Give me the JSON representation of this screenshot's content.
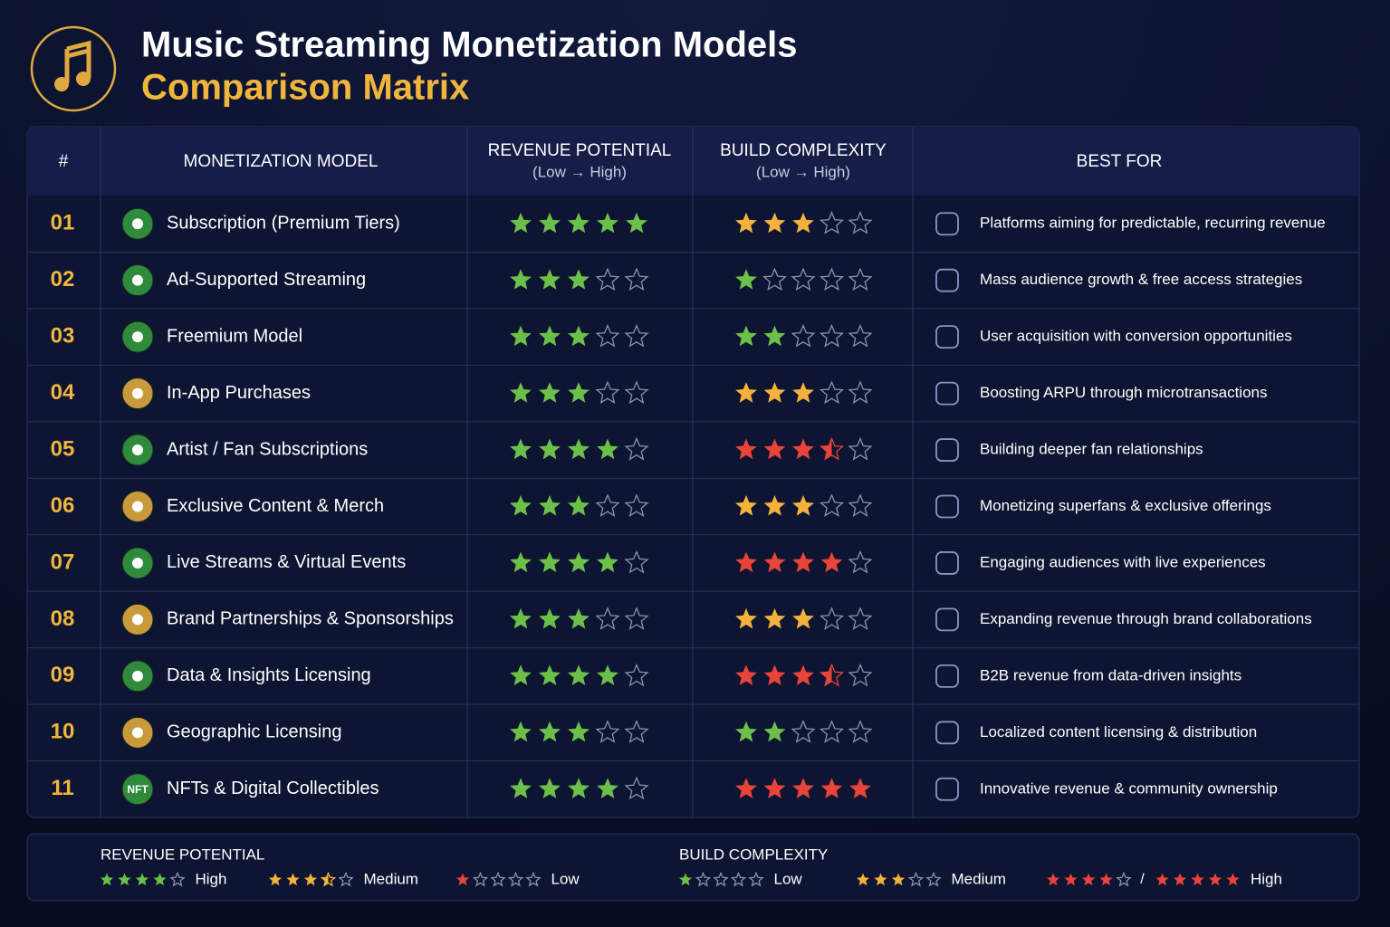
{
  "header": {
    "title": "Music Streaming Monetization Models",
    "subtitle": "Comparison Matrix"
  },
  "table": {
    "rating_max": 5,
    "revenue_color": "#6cc04a",
    "columns": [
      {
        "label": "#"
      },
      {
        "label": "MONETIZATION MODEL"
      },
      {
        "label": "REVENUE POTENTIAL",
        "sub": "(Low → High)"
      },
      {
        "label": "BUILD COMPLEXITY",
        "sub": "(Low → High)"
      },
      {
        "label": "BEST FOR"
      }
    ],
    "rows": [
      {
        "num": "01",
        "model": "Subscription (Premium Tiers)",
        "badge_color": "#2f8a3c",
        "revenue": 5,
        "complexity": 3,
        "complexity_color": "#f4b23c",
        "best_for": "Platforms aiming for predictable, recurring revenue"
      },
      {
        "num": "02",
        "model": "Ad-Supported Streaming",
        "badge_color": "#2f8a3c",
        "revenue": 3,
        "complexity": 1,
        "complexity_color": "#6cc04a",
        "best_for": "Mass audience growth & free access strategies"
      },
      {
        "num": "03",
        "model": "Freemium Model",
        "badge_color": "#2f8a3c",
        "revenue": 3,
        "complexity": 2,
        "complexity_color": "#6cc04a",
        "best_for": "User acquisition with conversion opportunities"
      },
      {
        "num": "04",
        "model": "In-App Purchases",
        "badge_color": "#c99a3a",
        "revenue": 3,
        "complexity": 3,
        "complexity_color": "#f4b23c",
        "best_for": "Boosting ARPU through microtransactions"
      },
      {
        "num": "05",
        "model": "Artist / Fan Subscriptions",
        "badge_color": "#2f8a3c",
        "revenue": 4,
        "complexity": 3.5,
        "complexity_color": "#e8443a",
        "best_for": "Building deeper fan relationships"
      },
      {
        "num": "06",
        "model": "Exclusive Content & Merch",
        "badge_color": "#c99a3a",
        "revenue": 3,
        "complexity": 3,
        "complexity_color": "#f4b23c",
        "best_for": "Monetizing superfans & exclusive offerings"
      },
      {
        "num": "07",
        "model": "Live Streams & Virtual Events",
        "badge_color": "#2f8a3c",
        "revenue": 4,
        "complexity": 4,
        "complexity_color": "#e8443a",
        "best_for": "Engaging audiences with live experiences"
      },
      {
        "num": "08",
        "model": "Brand Partnerships & Sponsorships",
        "badge_color": "#c99a3a",
        "revenue": 3,
        "complexity": 3,
        "complexity_color": "#f4b23c",
        "best_for": "Expanding revenue through brand collaborations"
      },
      {
        "num": "09",
        "model": "Data & Insights Licensing",
        "badge_color": "#2f8a3c",
        "revenue": 4,
        "complexity": 3.5,
        "complexity_color": "#e8443a",
        "best_for": "B2B revenue from data-driven insights"
      },
      {
        "num": "10",
        "model": "Geographic Licensing",
        "badge_color": "#c99a3a",
        "revenue": 3,
        "complexity": 2,
        "complexity_color": "#6cc04a",
        "best_for": "Localized content licensing & distribution"
      },
      {
        "num": "11",
        "model": "NFTs & Digital Collectibles",
        "badge_color": "#2f8a3c",
        "badge_text": "NFT",
        "revenue": 4,
        "complexity": 5,
        "complexity_color": "#e8443a",
        "best_for": "Innovative revenue & community ownership"
      }
    ]
  },
  "legend": {
    "groups": [
      {
        "title": "REVENUE POTENTIAL",
        "items": [
          {
            "ratings": [
              4
            ],
            "color": "#6cc04a",
            "label": "High"
          },
          {
            "ratings": [
              3.5
            ],
            "color": "#f4b23c",
            "label": "Medium"
          },
          {
            "ratings": [
              1
            ],
            "color": "#e8443a",
            "label": "Low"
          }
        ]
      },
      {
        "title": "BUILD COMPLEXITY",
        "items": [
          {
            "ratings": [
              1
            ],
            "color": "#6cc04a",
            "label": "Low"
          },
          {
            "ratings": [
              3
            ],
            "color": "#f4b23c",
            "label": "Medium"
          },
          {
            "ratings": [
              4,
              5
            ],
            "separator": "/",
            "color": "#e8443a",
            "label": "High"
          }
        ]
      }
    ]
  }
}
